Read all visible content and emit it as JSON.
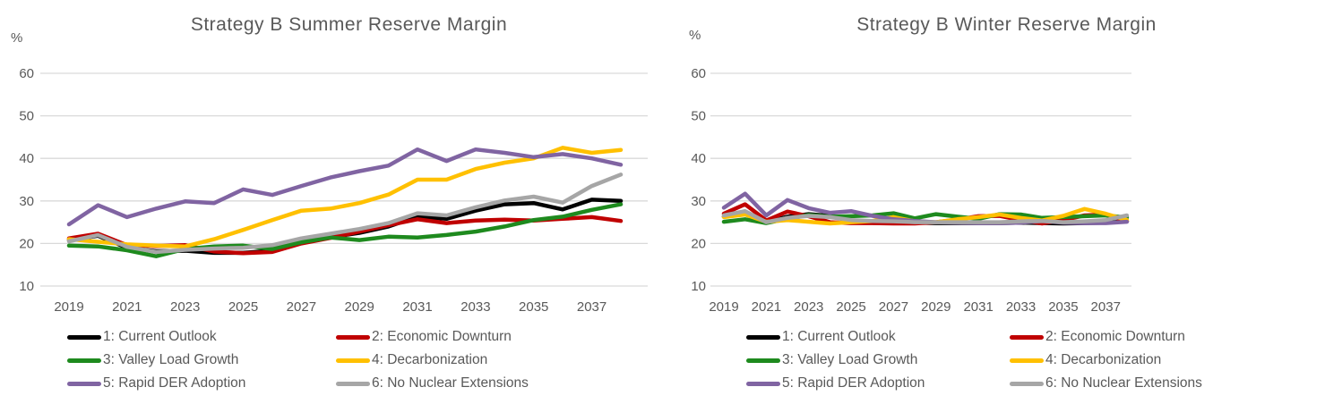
{
  "colors": {
    "background": "#ffffff",
    "grid": "#d9d9d9",
    "axis_text": "#595959",
    "title_text": "#595959",
    "border_bar": "#000000"
  },
  "chart_data": [
    {
      "type": "line",
      "title": "Strategy B Summer Reserve Margin",
      "y_axis_label": "%",
      "xlabel": "",
      "ylabel": "%",
      "ylim": [
        10,
        60
      ],
      "grid": "horizontal",
      "legend_position": "bottom",
      "y_ticks": [
        60,
        50,
        40,
        30,
        20,
        10
      ],
      "x_ticks": [
        2019,
        2021,
        2023,
        2025,
        2027,
        2029,
        2031,
        2033,
        2035,
        2037
      ],
      "x": [
        2019,
        2020,
        2021,
        2022,
        2023,
        2024,
        2025,
        2026,
        2027,
        2028,
        2029,
        2030,
        2031,
        2032,
        2033,
        2034,
        2035,
        2036,
        2037,
        2038
      ],
      "series": [
        {
          "name": "1: Current Outlook",
          "color": "#000000",
          "values": [
            20.8,
            21.8,
            19.0,
            18.2,
            18.3,
            17.8,
            17.8,
            18.3,
            20.5,
            21.5,
            22.5,
            24.0,
            26.3,
            25.8,
            27.7,
            29.2,
            29.5,
            28.0,
            30.3,
            30.0
          ]
        },
        {
          "name": "2: Economic Downturn",
          "color": "#c00000",
          "values": [
            21.2,
            22.3,
            19.6,
            19.4,
            19.6,
            18.1,
            17.7,
            18.0,
            20.0,
            21.3,
            22.8,
            24.3,
            25.7,
            24.8,
            25.4,
            25.6,
            25.4,
            25.8,
            26.2,
            25.3
          ]
        },
        {
          "name": "3: Valley Load Growth",
          "color": "#1e8a1e",
          "values": [
            19.5,
            19.3,
            18.4,
            17.0,
            18.7,
            19.3,
            19.5,
            18.7,
            20.3,
            21.4,
            20.8,
            21.6,
            21.4,
            22.0,
            22.8,
            24.0,
            25.5,
            26.3,
            27.9,
            29.2
          ]
        },
        {
          "name": "4: Decarbonization",
          "color": "#ffc000",
          "values": [
            21.0,
            20.4,
            19.8,
            19.5,
            19.3,
            21.0,
            23.2,
            25.5,
            27.7,
            28.2,
            29.5,
            31.5,
            35.0,
            35.0,
            37.5,
            39.0,
            40.0,
            42.5,
            41.3,
            42.0
          ]
        },
        {
          "name": "5: Rapid DER Adoption",
          "color": "#8064a2",
          "values": [
            24.5,
            29.0,
            26.2,
            28.2,
            29.9,
            29.5,
            32.7,
            31.4,
            33.5,
            35.5,
            37.0,
            38.3,
            42.1,
            39.4,
            42.1,
            41.3,
            40.3,
            41.0,
            40.0,
            38.5
          ]
        },
        {
          "name": "6: No Nuclear Extensions",
          "color": "#a6a6a6",
          "values": [
            20.5,
            22.0,
            19.2,
            18.0,
            18.5,
            18.8,
            19.0,
            19.6,
            21.2,
            22.3,
            23.4,
            24.8,
            27.1,
            26.6,
            28.5,
            30.1,
            31.0,
            29.6,
            33.5,
            36.2
          ]
        }
      ]
    },
    {
      "type": "line",
      "title": "Strategy B Winter Reserve Margin",
      "y_axis_label": "%",
      "xlabel": "",
      "ylabel": "%",
      "ylim": [
        10,
        60
      ],
      "grid": "horizontal",
      "legend_position": "bottom",
      "y_ticks": [
        60,
        50,
        40,
        30,
        20,
        10
      ],
      "x_ticks": [
        2019,
        2021,
        2023,
        2025,
        2027,
        2029,
        2031,
        2033,
        2035,
        2037
      ],
      "x": [
        2019,
        2020,
        2021,
        2022,
        2023,
        2024,
        2025,
        2026,
        2027,
        2028,
        2029,
        2030,
        2031,
        2032,
        2033,
        2034,
        2035,
        2036,
        2037,
        2038
      ],
      "series": [
        {
          "name": "1: Current Outlook",
          "color": "#000000",
          "values": [
            26.3,
            27.2,
            25.0,
            26.3,
            26.9,
            26.5,
            25.3,
            25.2,
            25.0,
            24.9,
            24.8,
            24.8,
            24.8,
            24.8,
            24.9,
            24.8,
            24.7,
            24.8,
            24.9,
            25.2
          ]
        },
        {
          "name": "2: Economic Downturn",
          "color": "#c00000",
          "values": [
            27.0,
            29.2,
            25.4,
            27.5,
            26.4,
            25.0,
            24.8,
            24.8,
            24.7,
            24.7,
            25.0,
            25.6,
            26.4,
            26.5,
            25.5,
            24.7,
            25.5,
            26.6,
            26.8,
            25.2
          ]
        },
        {
          "name": "3: Valley Load Growth",
          "color": "#1e8a1e",
          "values": [
            25.1,
            25.7,
            24.8,
            25.8,
            26.7,
            26.3,
            26.4,
            26.6,
            27.1,
            25.9,
            26.9,
            26.3,
            25.8,
            26.9,
            26.8,
            26.0,
            26.2,
            26.4,
            26.6,
            26.1
          ]
        },
        {
          "name": "4: Decarbonization",
          "color": "#ffc000",
          "values": [
            26.2,
            26.8,
            25.1,
            25.5,
            25.1,
            24.7,
            25.0,
            25.3,
            26.2,
            25.2,
            25.0,
            25.7,
            26.2,
            26.8,
            26.0,
            25.4,
            26.5,
            28.1,
            27.0,
            25.5
          ]
        },
        {
          "name": "5: Rapid DER Adoption",
          "color": "#8064a2",
          "values": [
            28.4,
            31.7,
            26.6,
            30.2,
            28.3,
            27.2,
            27.6,
            26.5,
            25.7,
            25.3,
            25.0,
            24.9,
            24.8,
            24.8,
            24.9,
            25.3,
            24.9,
            24.8,
            24.8,
            25.1
          ]
        },
        {
          "name": "6: No Nuclear Extensions",
          "color": "#a6a6a6",
          "values": [
            26.6,
            27.6,
            25.0,
            26.0,
            26.5,
            26.2,
            25.5,
            25.3,
            25.2,
            25.0,
            25.0,
            25.0,
            25.0,
            25.0,
            25.2,
            25.3,
            25.0,
            25.2,
            25.5,
            26.6
          ]
        }
      ]
    }
  ]
}
